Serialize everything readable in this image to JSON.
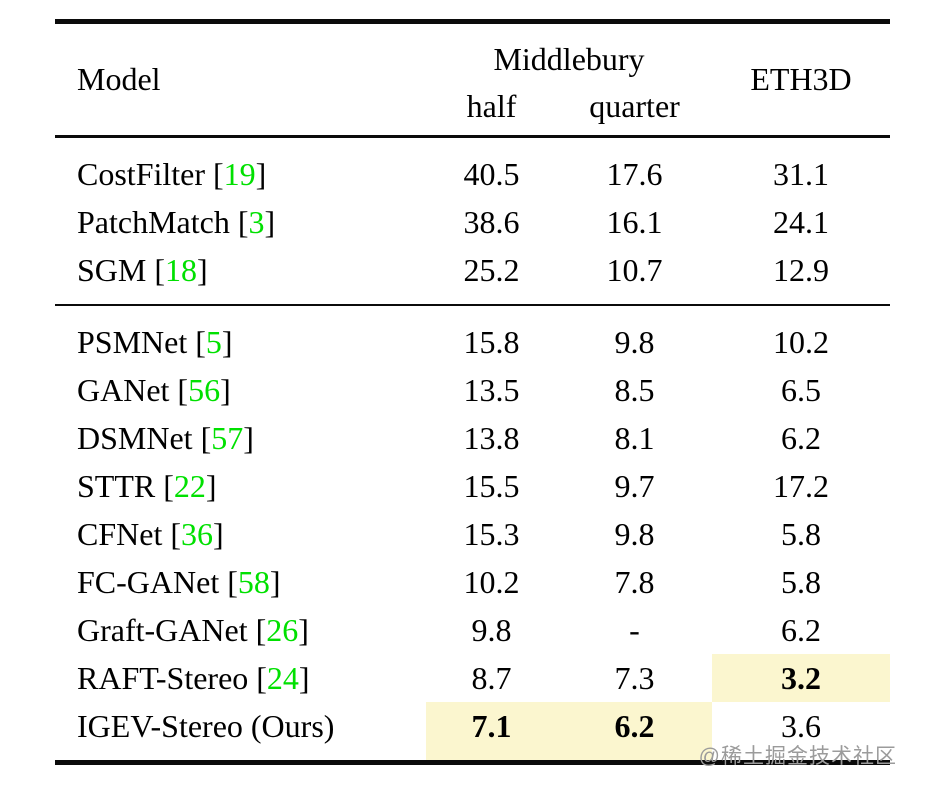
{
  "table": {
    "header": {
      "model": "Model",
      "middlebury": "Middlebury",
      "half": "half",
      "quarter": "quarter",
      "eth3d": "ETH3D"
    },
    "sections": [
      {
        "rows": [
          {
            "model": "CostFilter",
            "ref": "19",
            "cells": [
              {
                "v": "40.5"
              },
              {
                "v": "17.6"
              },
              {
                "v": "31.1"
              }
            ]
          },
          {
            "model": "PatchMatch",
            "ref": "3",
            "cells": [
              {
                "v": "38.6"
              },
              {
                "v": "16.1"
              },
              {
                "v": "24.1"
              }
            ]
          },
          {
            "model": "SGM",
            "ref": "18",
            "cells": [
              {
                "v": "25.2"
              },
              {
                "v": "10.7"
              },
              {
                "v": "12.9"
              }
            ]
          }
        ]
      },
      {
        "rows": [
          {
            "model": "PSMNet",
            "ref": "5",
            "cells": [
              {
                "v": "15.8"
              },
              {
                "v": "9.8"
              },
              {
                "v": "10.2"
              }
            ]
          },
          {
            "model": "GANet",
            "ref": "56",
            "cells": [
              {
                "v": "13.5"
              },
              {
                "v": "8.5"
              },
              {
                "v": "6.5"
              }
            ]
          },
          {
            "model": "DSMNet",
            "ref": "57",
            "cells": [
              {
                "v": "13.8"
              },
              {
                "v": "8.1"
              },
              {
                "v": "6.2"
              }
            ]
          },
          {
            "model": "STTR",
            "ref": "22",
            "cells": [
              {
                "v": "15.5"
              },
              {
                "v": "9.7"
              },
              {
                "v": "17.2"
              }
            ]
          },
          {
            "model": "CFNet",
            "ref": "36",
            "cells": [
              {
                "v": "15.3"
              },
              {
                "v": "9.8"
              },
              {
                "v": "5.8"
              }
            ]
          },
          {
            "model": "FC-GANet",
            "ref": "58",
            "cells": [
              {
                "v": "10.2"
              },
              {
                "v": "7.8"
              },
              {
                "v": "5.8"
              }
            ]
          },
          {
            "model": "Graft-GANet",
            "ref": "26",
            "cells": [
              {
                "v": "9.8"
              },
              {
                "v": "-"
              },
              {
                "v": "6.2"
              }
            ]
          },
          {
            "model": "RAFT-Stereo",
            "ref": "24",
            "cells": [
              {
                "v": "8.7"
              },
              {
                "v": "7.3"
              },
              {
                "v": "3.2",
                "bold": true,
                "hl": true
              }
            ]
          },
          {
            "model": "IGEV-Stereo (Ours)",
            "ref": null,
            "cells": [
              {
                "v": "7.1",
                "bold": true,
                "hl": true
              },
              {
                "v": "6.2",
                "bold": true,
                "hl": true
              },
              {
                "v": "3.6"
              }
            ]
          }
        ]
      }
    ]
  },
  "colors": {
    "citation_green": "#00e000",
    "highlight_yellow": "#fbf6cf",
    "rule_black": "#0b0b0b",
    "watermark_gray": "#9b9b9b"
  },
  "watermark": "@稀土掘金技术社区"
}
